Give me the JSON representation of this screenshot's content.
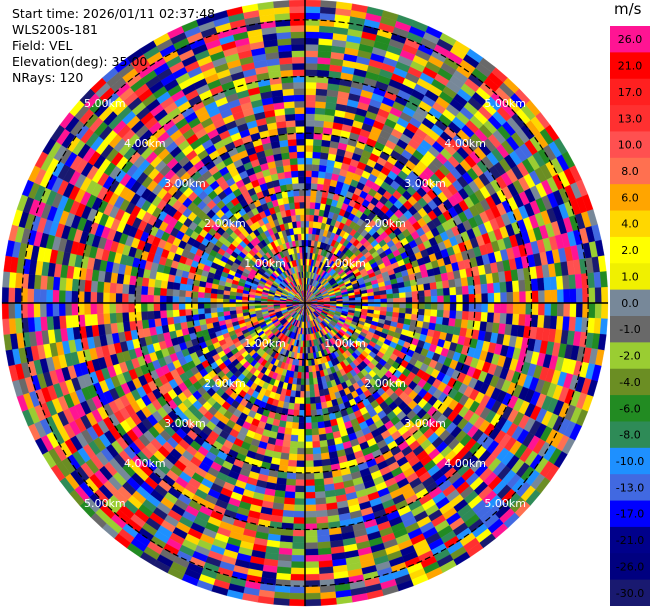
{
  "header": {
    "start_time": "Start time: 2026/01/11 02:37:48",
    "instrument": "WLS200s-181",
    "field": "Field: VEL",
    "elevation": "Elevation(deg): 35.00",
    "nrays": "NRays: 120"
  },
  "colorbar": {
    "unit": "m/s",
    "levels": [
      {
        "label": "26.0",
        "color": "#ff1493"
      },
      {
        "label": "21.0",
        "color": "#ff0000"
      },
      {
        "label": "17.0",
        "color": "#ff2020"
      },
      {
        "label": "13.0",
        "color": "#ff3030"
      },
      {
        "label": "10.0",
        "color": "#ff5050"
      },
      {
        "label": "8.0",
        "color": "#ff7050"
      },
      {
        "label": "6.0",
        "color": "#ffa500"
      },
      {
        "label": "4.0",
        "color": "#ffd700"
      },
      {
        "label": "2.0",
        "color": "#ffff00"
      },
      {
        "label": "1.0",
        "color": "#f0f000"
      },
      {
        "label": "0.0",
        "color": "#778899"
      },
      {
        "label": "-1.0",
        "color": "#696969"
      },
      {
        "label": "-2.0",
        "color": "#9acd32"
      },
      {
        "label": "-4.0",
        "color": "#6b8e23"
      },
      {
        "label": "-6.0",
        "color": "#228b22"
      },
      {
        "label": "-8.0",
        "color": "#2e8b57"
      },
      {
        "label": "-10.0",
        "color": "#1e90ff"
      },
      {
        "label": "-13.0",
        "color": "#4169e1"
      },
      {
        "label": "-17.0",
        "color": "#0000ff"
      },
      {
        "label": "-21.0",
        "color": "#00008b"
      },
      {
        "label": "-26.0",
        "color": "#000080"
      },
      {
        "label": "-30.0",
        "color": "#191970"
      }
    ]
  },
  "chart_data": {
    "type": "heatmap",
    "projection": "polar-ppi",
    "n_rays": 120,
    "range_rings_km": [
      1.0,
      2.0,
      3.0,
      4.0,
      5.0
    ],
    "ring_labels": [
      "1.00km",
      "2.00km",
      "3.00km",
      "4.00km",
      "5.00km"
    ],
    "max_range_km": 5.35,
    "n_gates": 48,
    "field": "VEL",
    "units": "m/s",
    "colors": [
      "#ff1493",
      "#ff0000",
      "#ff3030",
      "#ff5050",
      "#ff7050",
      "#ffa500",
      "#ffd700",
      "#ffff00",
      "#778899",
      "#696969",
      "#9acd32",
      "#6b8e23",
      "#228b22",
      "#2e8b57",
      "#1e90ff",
      "#4169e1",
      "#0000ff",
      "#00008b",
      "#000080",
      "#191970"
    ]
  }
}
